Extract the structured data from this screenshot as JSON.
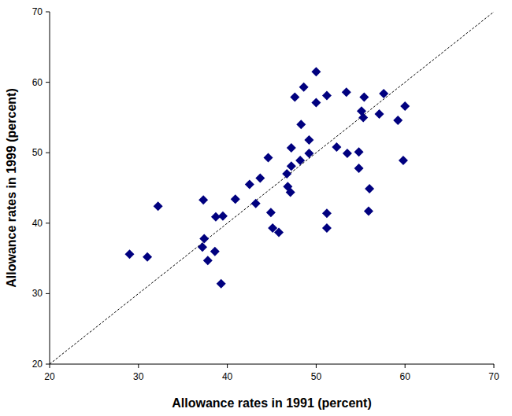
{
  "chart_data": {
    "type": "scatter",
    "x_label": "Allowance rates in 1991 (percent)",
    "y_label": "Allowance rates in 1999 (percent)",
    "xlim": [
      20,
      70
    ],
    "ylim": [
      20,
      70
    ],
    "xticks": [
      20,
      30,
      40,
      50,
      60,
      70
    ],
    "yticks": [
      20,
      30,
      40,
      50,
      60,
      70
    ],
    "grid": false,
    "marker": "diamond",
    "color": "#00007f",
    "x": [
      29.0,
      31.0,
      32.2,
      37.3,
      37.2,
      37.4,
      37.8,
      38.6,
      38.7,
      39.3,
      39.5,
      40.9,
      42.5,
      43.2,
      43.7,
      44.6,
      44.9,
      45.1,
      45.8,
      46.7,
      46.8,
      47.1,
      47.2,
      47.2,
      47.6,
      48.2,
      48.3,
      48.6,
      49.2,
      49.2,
      50.0,
      50.0,
      51.2,
      51.2,
      51.2,
      52.3,
      53.4,
      53.5,
      54.8,
      54.8,
      55.1,
      55.3,
      55.4,
      55.9,
      56.0,
      57.1,
      57.6,
      59.2,
      59.8,
      60.0
    ],
    "values": [
      35.6,
      35.2,
      42.4,
      43.3,
      36.6,
      37.8,
      34.7,
      36.0,
      40.9,
      31.4,
      41.0,
      43.4,
      45.5,
      42.8,
      46.4,
      49.3,
      41.5,
      39.3,
      38.7,
      47.0,
      45.2,
      44.4,
      48.1,
      50.7,
      57.9,
      48.9,
      54.0,
      59.3,
      51.8,
      49.9,
      61.5,
      57.1,
      58.1,
      41.4,
      39.3,
      50.8,
      58.6,
      49.9,
      50.1,
      47.8,
      55.9,
      55.0,
      57.9,
      41.7,
      44.9,
      55.5,
      58.4,
      54.6,
      48.9,
      56.6
    ]
  }
}
